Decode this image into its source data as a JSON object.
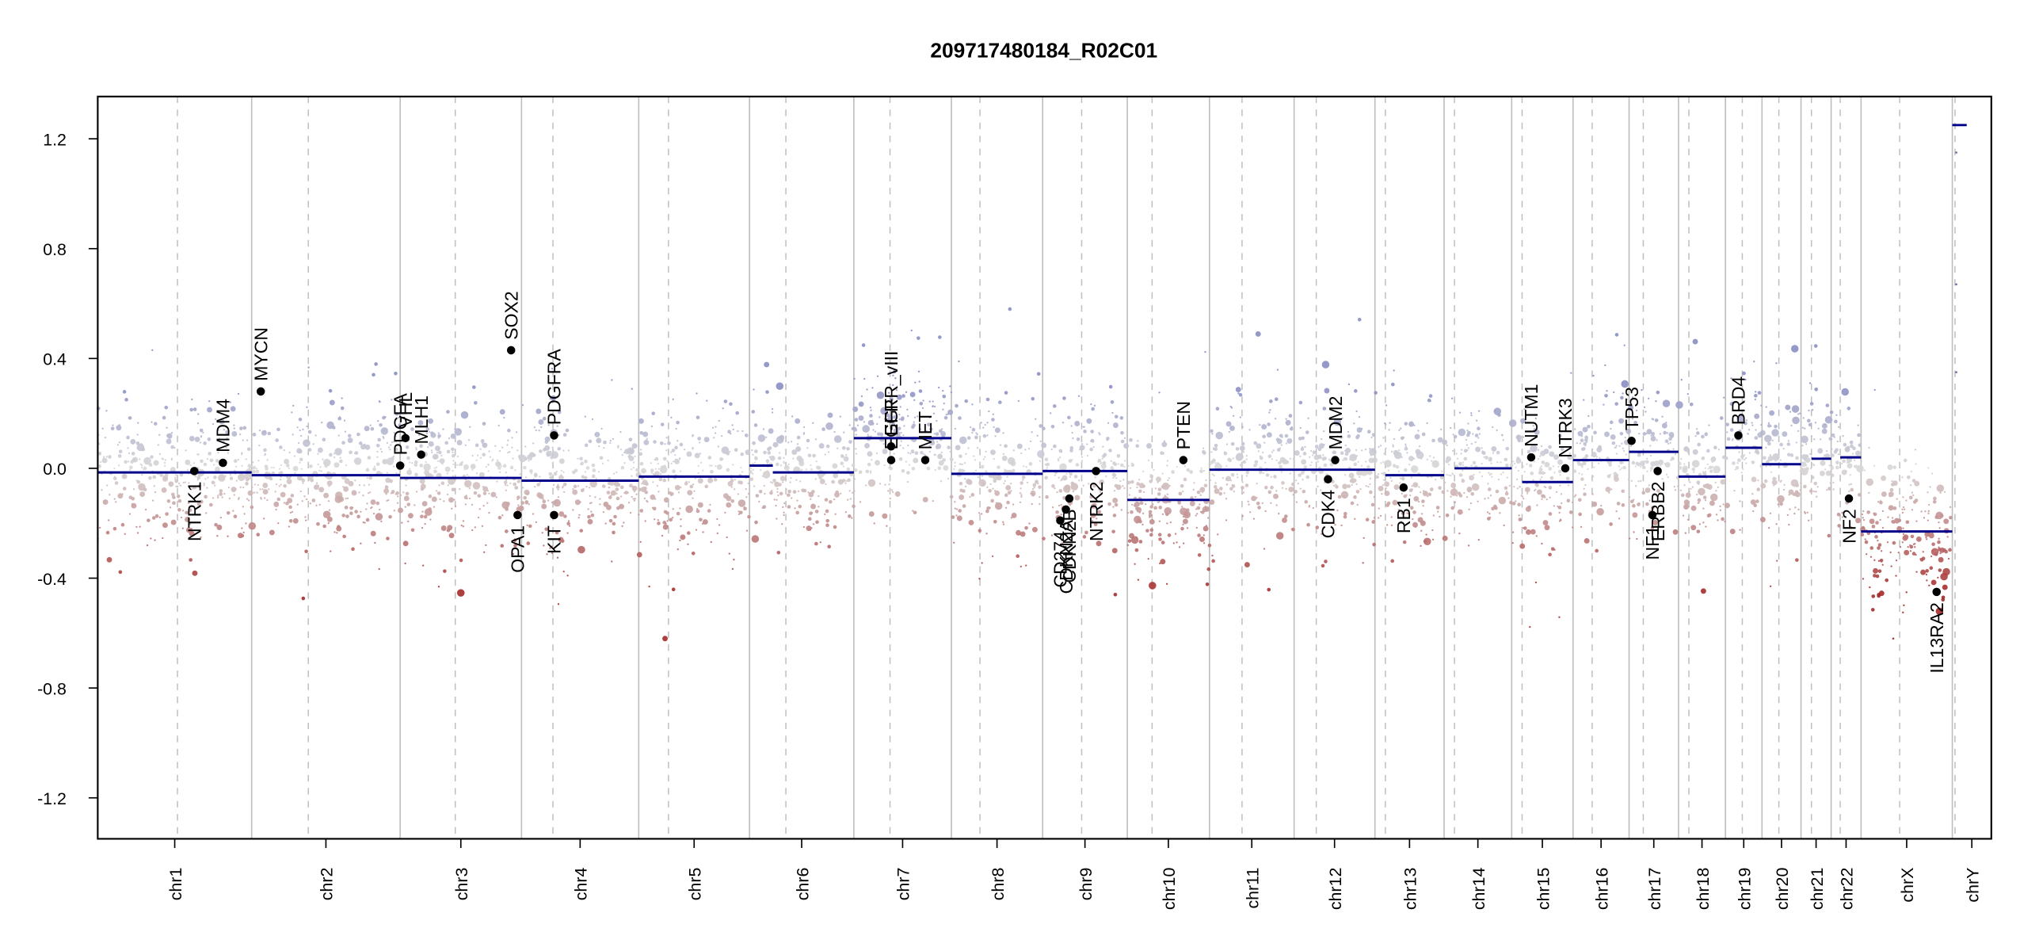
{
  "chart_data": {
    "type": "scatter",
    "title": "209717480184_R02C01",
    "xlabel": "",
    "ylabel": "",
    "ylim": [
      -1.35,
      1.35
    ],
    "yticks": [
      1.2,
      0.8,
      0.4,
      0.0,
      -0.4,
      -0.8,
      -1.2
    ],
    "ytick_labels": [
      "1.2",
      "0.8",
      "0.4",
      "0.0",
      "-0.4",
      "-0.8",
      "-1.2"
    ],
    "grid": false,
    "legend": "none",
    "colors": {
      "gain": "#8a8ec4",
      "neutral": "#d8d8d8",
      "loss": "#a52a2a",
      "segment": "#00008b",
      "gene_point": "#000000",
      "boundary": "#bebebe",
      "centromere": "#bebebe"
    },
    "chromosomes": [
      {
        "name": "chr1",
        "start": 0.0,
        "end": 0.0813,
        "centromere": 0.0421,
        "segments": [
          {
            "from": 0.0,
            "to": 0.0813,
            "mean": -0.015
          }
        ]
      },
      {
        "name": "chr2",
        "start": 0.0813,
        "end": 0.1597,
        "centromere": 0.1112,
        "segments": [
          {
            "from": 0.0813,
            "to": 0.1597,
            "mean": -0.025
          }
        ]
      },
      {
        "name": "chr3",
        "start": 0.1597,
        "end": 0.2238,
        "centromere": 0.1888,
        "segments": [
          {
            "from": 0.1597,
            "to": 0.2238,
            "mean": -0.035
          }
        ]
      },
      {
        "name": "chr4",
        "start": 0.2238,
        "end": 0.2857,
        "centromere": 0.2404,
        "segments": [
          {
            "from": 0.2238,
            "to": 0.2857,
            "mean": -0.045
          }
        ]
      },
      {
        "name": "chr5",
        "start": 0.2857,
        "end": 0.3442,
        "centromere": 0.3014,
        "segments": [
          {
            "from": 0.2857,
            "to": 0.3442,
            "mean": -0.03
          }
        ]
      },
      {
        "name": "chr6",
        "start": 0.3442,
        "end": 0.3993,
        "centromere": 0.3634,
        "segments": [
          {
            "from": 0.3442,
            "to": 0.3565,
            "mean": 0.01
          },
          {
            "from": 0.3565,
            "to": 0.3993,
            "mean": -0.015
          }
        ]
      },
      {
        "name": "chr7",
        "start": 0.3993,
        "end": 0.4508,
        "centromere": 0.4184,
        "segments": [
          {
            "from": 0.3993,
            "to": 0.4508,
            "mean": 0.11
          }
        ]
      },
      {
        "name": "chr8",
        "start": 0.4508,
        "end": 0.499,
        "centromere": 0.4659,
        "segments": [
          {
            "from": 0.4508,
            "to": 0.499,
            "mean": -0.02
          }
        ]
      },
      {
        "name": "chr9",
        "start": 0.499,
        "end": 0.5437,
        "centromere": 0.5196,
        "segments": [
          {
            "from": 0.499,
            "to": 0.5437,
            "mean": -0.01
          }
        ]
      },
      {
        "name": "chr10",
        "start": 0.5437,
        "end": 0.5871,
        "centromere": 0.5568,
        "segments": [
          {
            "from": 0.5437,
            "to": 0.5871,
            "mean": -0.115
          }
        ]
      },
      {
        "name": "chr11",
        "start": 0.5871,
        "end": 0.6318,
        "centromere": 0.6043,
        "segments": [
          {
            "from": 0.5871,
            "to": 0.6318,
            "mean": -0.005
          }
        ]
      },
      {
        "name": "chr12",
        "start": 0.6318,
        "end": 0.6745,
        "centromere": 0.6435,
        "segments": [
          {
            "from": 0.6318,
            "to": 0.6745,
            "mean": -0.005
          }
        ]
      },
      {
        "name": "chr13",
        "start": 0.6745,
        "end": 0.711,
        "centromere": 0.68,
        "segments": [
          {
            "from": 0.68,
            "to": 0.711,
            "mean": -0.025
          }
        ]
      },
      {
        "name": "chr14",
        "start": 0.711,
        "end": 0.7467,
        "centromere": 0.7165,
        "segments": [
          {
            "from": 0.7165,
            "to": 0.7467,
            "mean": 0.0
          }
        ]
      },
      {
        "name": "chr15",
        "start": 0.7467,
        "end": 0.7791,
        "centromere": 0.7522,
        "segments": [
          {
            "from": 0.7522,
            "to": 0.7791,
            "mean": -0.05
          }
        ]
      },
      {
        "name": "chr16",
        "start": 0.7791,
        "end": 0.8087,
        "centromere": 0.7892,
        "segments": [
          {
            "from": 0.7791,
            "to": 0.8087,
            "mean": 0.03
          }
        ]
      },
      {
        "name": "chr17",
        "start": 0.8087,
        "end": 0.8348,
        "centromere": 0.8162,
        "segments": [
          {
            "from": 0.8087,
            "to": 0.8348,
            "mean": 0.06
          }
        ]
      },
      {
        "name": "chr18",
        "start": 0.8348,
        "end": 0.8596,
        "centromere": 0.8403,
        "segments": [
          {
            "from": 0.8348,
            "to": 0.8596,
            "mean": -0.03
          }
        ]
      },
      {
        "name": "chr19",
        "start": 0.8596,
        "end": 0.8789,
        "centromere": 0.8685,
        "segments": [
          {
            "from": 0.8596,
            "to": 0.8789,
            "mean": 0.075
          }
        ]
      },
      {
        "name": "chr20",
        "start": 0.8789,
        "end": 0.8995,
        "centromere": 0.8878,
        "segments": [
          {
            "from": 0.8789,
            "to": 0.8995,
            "mean": 0.015
          }
        ]
      },
      {
        "name": "chr21",
        "start": 0.8995,
        "end": 0.9154,
        "centromere": 0.905,
        "segments": [
          {
            "from": 0.905,
            "to": 0.9154,
            "mean": 0.035
          }
        ]
      },
      {
        "name": "chr22",
        "start": 0.9154,
        "end": 0.9312,
        "centromere": 0.9202,
        "segments": [
          {
            "from": 0.9202,
            "to": 0.9312,
            "mean": 0.04
          }
        ]
      },
      {
        "name": "chrX",
        "start": 0.9312,
        "end": 0.9794,
        "centromere": 0.9516,
        "segments": [
          {
            "from": 0.9312,
            "to": 0.9794,
            "mean": -0.23
          }
        ]
      },
      {
        "name": "chrY",
        "start": 0.9794,
        "end": 1.0,
        "centromere": 0.9808,
        "segments": [
          {
            "from": 0.9794,
            "to": 0.987,
            "mean": 1.25
          }
        ]
      }
    ],
    "genes": [
      {
        "name": "NTRK1",
        "x": 0.051,
        "y": -0.01,
        "label_side": "below"
      },
      {
        "name": "MDM4",
        "x": 0.0661,
        "y": 0.02,
        "label_side": "above"
      },
      {
        "name": "MYCN",
        "x": 0.0861,
        "y": 0.28,
        "label_side": "above"
      },
      {
        "name": "PDGFA",
        "x": 0.1597,
        "y": 0.01,
        "label_side": "above"
      },
      {
        "name": "VHL",
        "x": 0.1625,
        "y": 0.11,
        "label_side": "above"
      },
      {
        "name": "MLH1",
        "x": 0.1708,
        "y": 0.05,
        "label_side": "above"
      },
      {
        "name": "SOX2",
        "x": 0.2183,
        "y": 0.43,
        "label_side": "above"
      },
      {
        "name": "OPA1",
        "x": 0.2217,
        "y": -0.17,
        "label_side": "below"
      },
      {
        "name": "PDGFRA",
        "x": 0.241,
        "y": 0.12,
        "label_side": "above"
      },
      {
        "name": "KIT",
        "x": 0.241,
        "y": -0.17,
        "label_side": "below"
      },
      {
        "name": "EGFR",
        "x": 0.419,
        "y": 0.03,
        "label_side": "above"
      },
      {
        "name": "EGFR_vIII",
        "x": 0.419,
        "y": 0.08,
        "label_side": "above"
      },
      {
        "name": "MET",
        "x": 0.437,
        "y": 0.03,
        "label_side": "above"
      },
      {
        "name": "CD274",
        "x": 0.5083,
        "y": -0.19,
        "label_side": "below"
      },
      {
        "name": "CDKN2A",
        "x": 0.5113,
        "y": -0.15,
        "label_side": "below"
      },
      {
        "name": "CDKN2B",
        "x": 0.5131,
        "y": -0.11,
        "label_side": "below"
      },
      {
        "name": "NTRK2",
        "x": 0.5272,
        "y": -0.01,
        "label_side": "below"
      },
      {
        "name": "PTEN",
        "x": 0.5733,
        "y": 0.03,
        "label_side": "above"
      },
      {
        "name": "CDK4",
        "x": 0.6497,
        "y": -0.04,
        "label_side": "below"
      },
      {
        "name": "MDM2",
        "x": 0.6535,
        "y": 0.03,
        "label_side": "above"
      },
      {
        "name": "RB1",
        "x": 0.6896,
        "y": -0.07,
        "label_side": "below"
      },
      {
        "name": "NUTM1",
        "x": 0.757,
        "y": 0.04,
        "label_side": "above"
      },
      {
        "name": "NTRK3",
        "x": 0.775,
        "y": 0.0,
        "label_side": "above"
      },
      {
        "name": "TP53",
        "x": 0.81,
        "y": 0.1,
        "label_side": "above"
      },
      {
        "name": "NF1",
        "x": 0.821,
        "y": -0.17,
        "label_side": "below"
      },
      {
        "name": "ERBB2",
        "x": 0.8238,
        "y": -0.01,
        "label_side": "below"
      },
      {
        "name": "BRD4",
        "x": 0.8664,
        "y": 0.12,
        "label_side": "above"
      },
      {
        "name": "NF2",
        "x": 0.9248,
        "y": -0.11,
        "label_side": "below"
      },
      {
        "name": "IL13RA2",
        "x": 0.9711,
        "y": -0.45,
        "label_side": "below"
      }
    ]
  }
}
